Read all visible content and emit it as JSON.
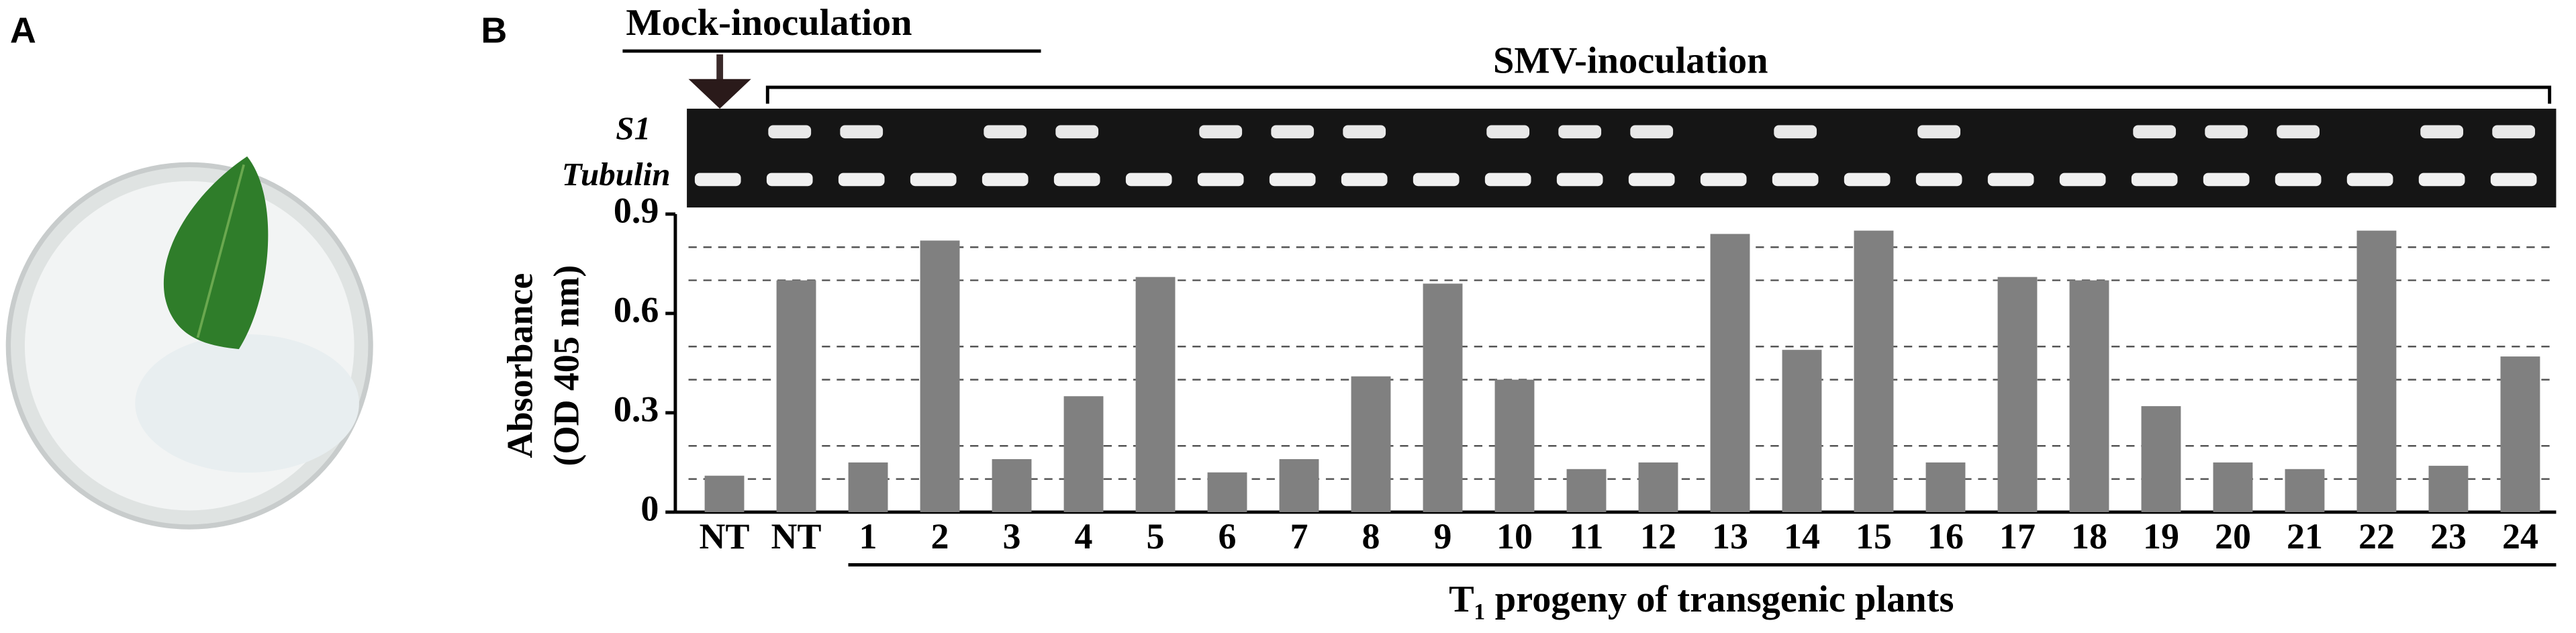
{
  "panel_labels": [
    "A",
    "B"
  ],
  "gel": {
    "mock_label": "Mock-inoculation",
    "smv_label": "SMV-inoculation",
    "row_labels": [
      "S1",
      "Tubulin"
    ]
  },
  "chart_data": {
    "type": "bar",
    "y_label": [
      "Absorbance",
      "(OD 405 nm)"
    ],
    "x_label": "T₁ progeny of transgenic plants",
    "categories": [
      "NT",
      "NT",
      "1",
      "2",
      "3",
      "4",
      "5",
      "6",
      "7",
      "8",
      "9",
      "10",
      "11",
      "12",
      "13",
      "14",
      "15",
      "16",
      "17",
      "18",
      "19",
      "20",
      "21",
      "22",
      "23",
      "24"
    ],
    "values": [
      0.11,
      0.7,
      0.15,
      0.82,
      0.16,
      0.35,
      0.71,
      0.12,
      0.16,
      0.41,
      0.69,
      0.4,
      0.13,
      0.15,
      0.84,
      0.49,
      0.85,
      0.15,
      0.71,
      0.7,
      0.32,
      0.15,
      0.13,
      0.85,
      0.14,
      0.47
    ],
    "color": "#808080",
    "ylim": [
      0,
      0.9
    ],
    "yticks": [
      0,
      0.3,
      0.6,
      0.9
    ],
    "grid_values": [
      0.1,
      0.2,
      0.4,
      0.5,
      0.7,
      0.8
    ],
    "grid": true
  }
}
